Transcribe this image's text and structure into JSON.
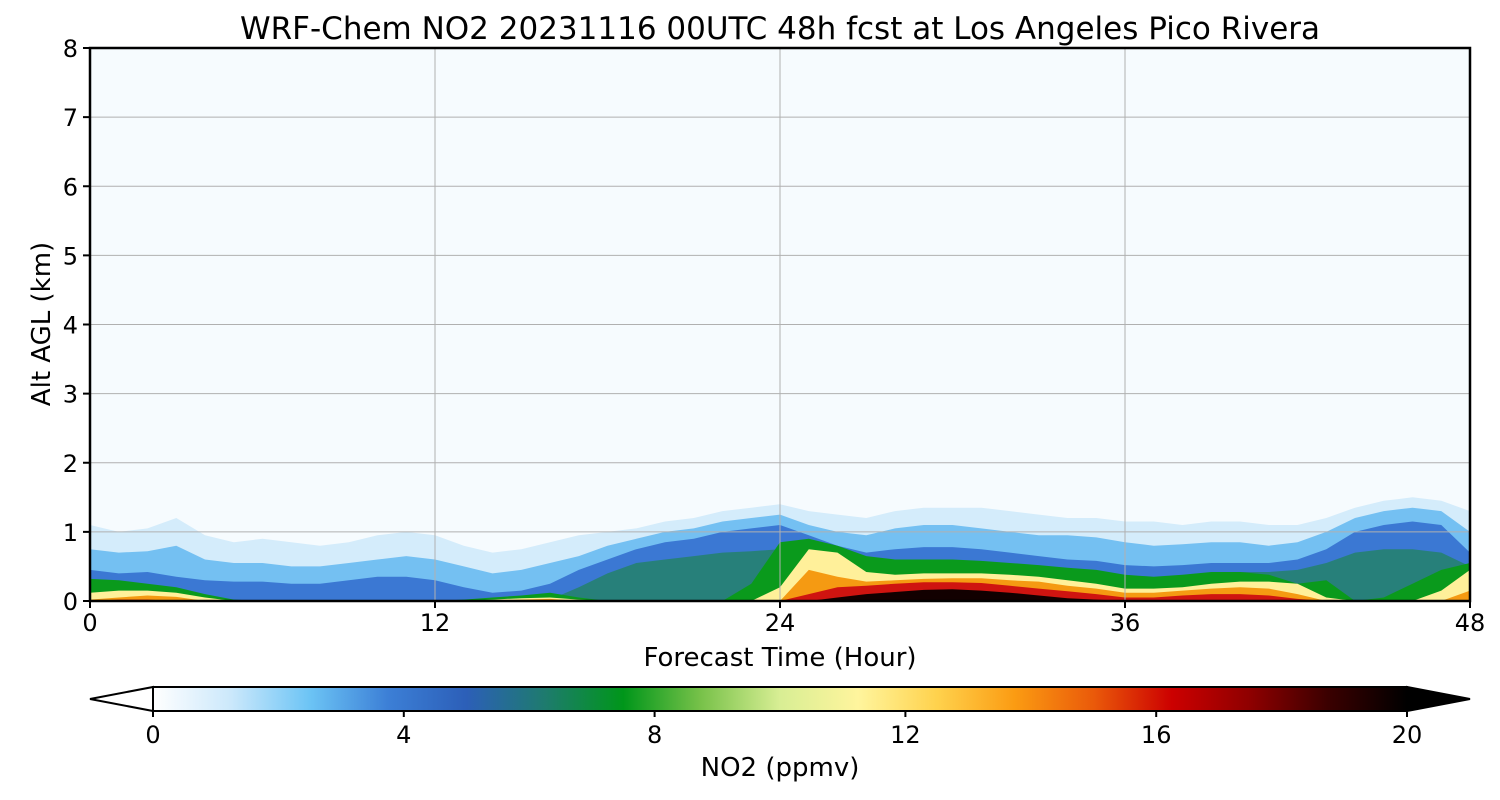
{
  "chart_data": {
    "type": "heatmap",
    "title": "WRF-Chem NO2  20231116 00UTC 48h fcst at Los Angeles Pico Rivera",
    "xlabel": "Forecast Time (Hour)",
    "ylabel": "Alt AGL (km)",
    "xlim": [
      0,
      48
    ],
    "ylim": [
      0,
      8
    ],
    "xticks": [
      0,
      12,
      24,
      36,
      48
    ],
    "yticks": [
      0,
      1,
      2,
      3,
      4,
      5,
      6,
      7,
      8
    ],
    "grid": true,
    "colorbar": {
      "label": "NO2  (ppmv)",
      "range": [
        0,
        20
      ],
      "ticks": [
        0,
        4,
        8,
        12,
        16,
        20
      ],
      "extend": "both",
      "colors": [
        "#ffffff",
        "#cbe8fb",
        "#6cc4f5",
        "#3c7fd6",
        "#2c5fb8",
        "#1e7b6e",
        "#00961a",
        "#79c24a",
        "#d8ee94",
        "#fff59d",
        "#ffd24d",
        "#fb9b12",
        "#ea5a0a",
        "#cc0000",
        "#8e0000",
        "#3a0000",
        "#000000"
      ]
    },
    "x": [
      0,
      1,
      2,
      3,
      4,
      5,
      6,
      7,
      8,
      9,
      10,
      11,
      12,
      13,
      14,
      15,
      16,
      17,
      18,
      19,
      20,
      21,
      22,
      23,
      24,
      25,
      26,
      27,
      28,
      29,
      30,
      31,
      32,
      33,
      34,
      35,
      36,
      37,
      38,
      39,
      40,
      41,
      42,
      43,
      44,
      45,
      46,
      47,
      48
    ],
    "layers": [
      {
        "name": "faint",
        "value": 0.7,
        "top_km": [
          1.1,
          1.0,
          1.05,
          1.2,
          0.95,
          0.85,
          0.9,
          0.85,
          0.8,
          0.85,
          0.95,
          1.0,
          0.95,
          0.8,
          0.7,
          0.75,
          0.85,
          0.95,
          1.0,
          1.05,
          1.15,
          1.2,
          1.3,
          1.35,
          1.4,
          1.3,
          1.25,
          1.2,
          1.3,
          1.35,
          1.35,
          1.35,
          1.3,
          1.25,
          1.2,
          1.2,
          1.15,
          1.15,
          1.1,
          1.15,
          1.15,
          1.1,
          1.1,
          1.2,
          1.35,
          1.45,
          1.5,
          1.45,
          1.3
        ]
      },
      {
        "name": "light-blue",
        "value": 2.5,
        "top_km": [
          0.75,
          0.7,
          0.72,
          0.8,
          0.6,
          0.55,
          0.55,
          0.5,
          0.5,
          0.55,
          0.6,
          0.65,
          0.6,
          0.5,
          0.4,
          0.45,
          0.55,
          0.65,
          0.8,
          0.9,
          1.0,
          1.05,
          1.15,
          1.2,
          1.25,
          1.1,
          1.0,
          0.95,
          1.05,
          1.1,
          1.1,
          1.05,
          1.0,
          0.95,
          0.95,
          0.92,
          0.85,
          0.8,
          0.82,
          0.85,
          0.85,
          0.8,
          0.85,
          1.0,
          1.2,
          1.3,
          1.35,
          1.3,
          1.0
        ]
      },
      {
        "name": "blue",
        "value": 4.0,
        "top_km": [
          0.45,
          0.4,
          0.42,
          0.35,
          0.3,
          0.28,
          0.28,
          0.25,
          0.25,
          0.3,
          0.35,
          0.35,
          0.3,
          0.2,
          0.12,
          0.15,
          0.25,
          0.45,
          0.6,
          0.75,
          0.85,
          0.9,
          1.0,
          1.05,
          1.1,
          0.95,
          0.8,
          0.7,
          0.75,
          0.78,
          0.78,
          0.75,
          0.7,
          0.65,
          0.6,
          0.58,
          0.52,
          0.5,
          0.52,
          0.55,
          0.55,
          0.55,
          0.6,
          0.75,
          1.0,
          1.1,
          1.15,
          1.1,
          0.7
        ]
      },
      {
        "name": "teal",
        "value": 6.5,
        "top_km": [
          0.12,
          0.15,
          0.12,
          0.05,
          0.0,
          0.0,
          0.0,
          0.0,
          0.0,
          0.0,
          0.0,
          0.0,
          0.0,
          0.0,
          0.0,
          0.0,
          0.02,
          0.2,
          0.4,
          0.55,
          0.6,
          0.65,
          0.7,
          0.72,
          0.75,
          0.6,
          0.5,
          0.45,
          0.55,
          0.58,
          0.58,
          0.55,
          0.5,
          0.45,
          0.42,
          0.4,
          0.35,
          0.33,
          0.35,
          0.4,
          0.42,
          0.42,
          0.45,
          0.55,
          0.7,
          0.75,
          0.75,
          0.7,
          0.5
        ]
      },
      {
        "name": "green",
        "value": 8.0,
        "top_km": [
          0.32,
          0.3,
          0.25,
          0.2,
          0.1,
          0.02,
          0.0,
          0.0,
          0.0,
          0.0,
          0.0,
          0.0,
          0.0,
          0.02,
          0.05,
          0.08,
          0.12,
          0.05,
          0.0,
          0.0,
          0.0,
          0.0,
          0.0,
          0.25,
          0.85,
          0.9,
          0.8,
          0.65,
          0.6,
          0.6,
          0.6,
          0.58,
          0.55,
          0.52,
          0.48,
          0.45,
          0.38,
          0.35,
          0.38,
          0.42,
          0.42,
          0.38,
          0.25,
          0.3,
          0.0,
          0.05,
          0.25,
          0.45,
          0.55
        ]
      },
      {
        "name": "yellow",
        "value": 10.0,
        "top_km": [
          0.12,
          0.15,
          0.15,
          0.12,
          0.05,
          0.0,
          0.0,
          0.0,
          0.0,
          0.0,
          0.0,
          0.0,
          0.0,
          0.0,
          0.02,
          0.04,
          0.05,
          0.02,
          0.0,
          0.0,
          0.0,
          0.0,
          0.0,
          0.0,
          0.2,
          0.75,
          0.7,
          0.42,
          0.38,
          0.4,
          0.4,
          0.4,
          0.38,
          0.35,
          0.3,
          0.25,
          0.18,
          0.18,
          0.2,
          0.25,
          0.28,
          0.28,
          0.25,
          0.05,
          0.0,
          0.0,
          0.0,
          0.15,
          0.45
        ]
      },
      {
        "name": "orange",
        "value": 12.0,
        "top_km": [
          0.02,
          0.05,
          0.08,
          0.06,
          0.0,
          0.0,
          0.0,
          0.0,
          0.0,
          0.0,
          0.0,
          0.0,
          0.0,
          0.0,
          0.0,
          0.02,
          0.03,
          0.0,
          0.0,
          0.0,
          0.0,
          0.0,
          0.0,
          0.0,
          0.0,
          0.45,
          0.35,
          0.28,
          0.3,
          0.32,
          0.33,
          0.33,
          0.3,
          0.28,
          0.22,
          0.18,
          0.12,
          0.12,
          0.15,
          0.18,
          0.2,
          0.18,
          0.1,
          0.0,
          0.0,
          0.0,
          0.0,
          0.0,
          0.15
        ]
      },
      {
        "name": "red",
        "value": 15.0,
        "top_km": [
          0.0,
          0.02,
          0.02,
          0.0,
          0.0,
          0.0,
          0.0,
          0.0,
          0.0,
          0.0,
          0.0,
          0.0,
          0.0,
          0.0,
          0.0,
          0.0,
          0.0,
          0.0,
          0.0,
          0.0,
          0.0,
          0.0,
          0.0,
          0.0,
          0.0,
          0.1,
          0.2,
          0.22,
          0.25,
          0.27,
          0.27,
          0.26,
          0.22,
          0.18,
          0.14,
          0.1,
          0.05,
          0.05,
          0.08,
          0.1,
          0.1,
          0.08,
          0.03,
          0.0,
          0.0,
          0.0,
          0.0,
          0.0,
          0.0
        ]
      },
      {
        "name": "black",
        "value": 19.0,
        "top_km": [
          0.0,
          0.0,
          0.0,
          0.0,
          0.0,
          0.0,
          0.0,
          0.0,
          0.0,
          0.0,
          0.0,
          0.0,
          0.0,
          0.0,
          0.0,
          0.0,
          0.0,
          0.0,
          0.0,
          0.0,
          0.0,
          0.0,
          0.0,
          0.0,
          0.0,
          0.0,
          0.05,
          0.1,
          0.13,
          0.16,
          0.17,
          0.15,
          0.12,
          0.08,
          0.04,
          0.02,
          0.0,
          0.0,
          0.0,
          0.0,
          0.0,
          0.0,
          0.0,
          0.0,
          0.0,
          0.0,
          0.0,
          0.0,
          0.0
        ]
      }
    ]
  },
  "colors": {
    "background": "#f6fbfe",
    "grid": "#b0b0b0",
    "faint": "#d4ecfb",
    "light-blue": "#74c0f2",
    "blue": "#3b78d3",
    "teal": "#27807a",
    "green": "#0a9a1c",
    "yellow": "#fff09a",
    "orange": "#f59a12",
    "red": "#cf1410",
    "black": "#120000"
  }
}
